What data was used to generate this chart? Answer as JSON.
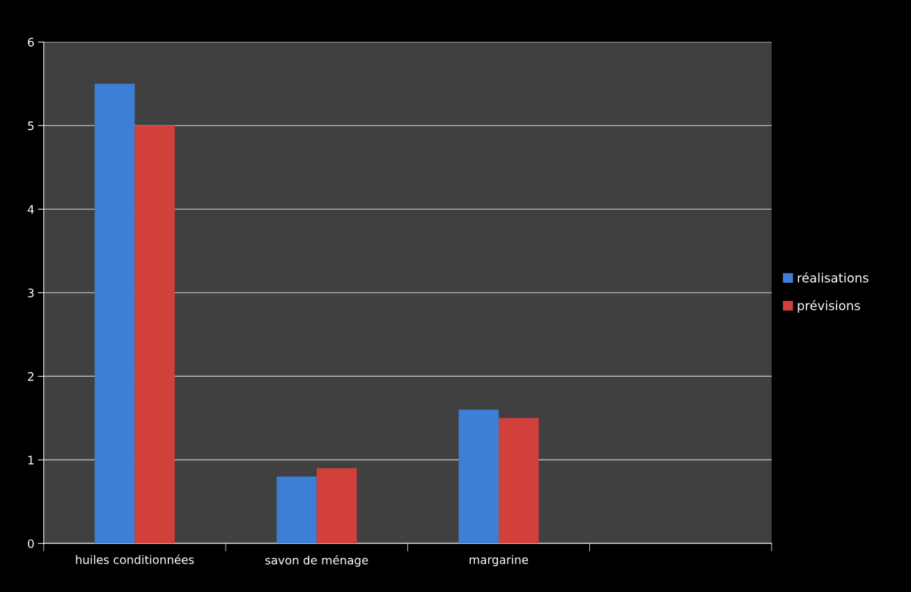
{
  "chart_data": {
    "type": "bar",
    "categories": [
      "huiles conditionnées",
      "savon de ménage",
      "margarine",
      null
    ],
    "series": [
      {
        "name": "réalisations",
        "color": "#3d7fd6",
        "values": [
          5.5,
          0.8,
          1.6,
          null
        ]
      },
      {
        "name": "prévisions",
        "color": "#d2403c",
        "values": [
          5.0,
          0.9,
          1.5,
          null
        ]
      }
    ],
    "ylim": [
      0,
      6
    ],
    "yticks": [
      0,
      1,
      2,
      3,
      4,
      5,
      6
    ],
    "grid": "y",
    "legend": "right"
  }
}
